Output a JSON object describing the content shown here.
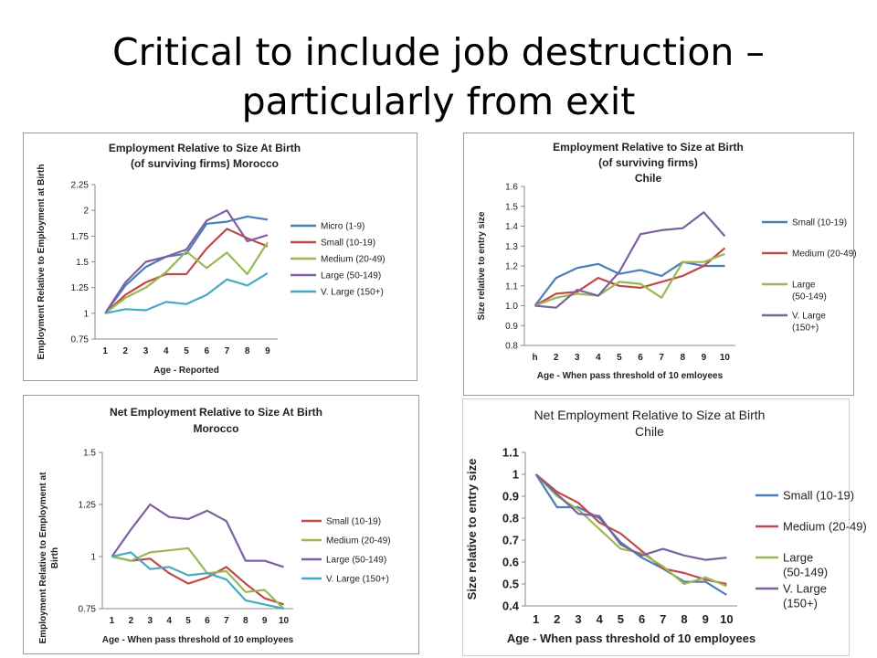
{
  "slide": {
    "title_line1": "Critical to include job destruction –",
    "title_line2": "particularly from exit"
  },
  "chart_data": [
    {
      "type": "line",
      "title": [
        "Employment Relative to Size At Birth",
        "(of surviving firms) Morocco"
      ],
      "xlabel": "Age - Reported",
      "ylabel": "Employment Relative to Employment at Birth",
      "x": [
        "1",
        "2",
        "3",
        "4",
        "5",
        "6",
        "7",
        "8",
        "9"
      ],
      "ylim": [
        0.75,
        2.25
      ],
      "yticks": [
        "0.75",
        "1",
        "1.25",
        "1.5",
        "1.75",
        "2",
        "2.25"
      ],
      "legend_position": "right",
      "series": [
        {
          "name": "Micro (1-9)",
          "color": "#4a7ebb",
          "values": [
            1,
            1.27,
            1.45,
            1.55,
            1.58,
            1.87,
            1.89,
            1.94,
            1.91
          ]
        },
        {
          "name": "Small (10-19)",
          "color": "#be4b48",
          "values": [
            1,
            1.18,
            1.3,
            1.38,
            1.38,
            1.63,
            1.82,
            1.73,
            1.65
          ]
        },
        {
          "name": "Medium (20-49)",
          "color": "#98b954",
          "values": [
            1,
            1.15,
            1.25,
            1.4,
            1.6,
            1.44,
            1.59,
            1.38,
            1.69
          ]
        },
        {
          "name": "Large (50-149)",
          "color": "#7d60a0",
          "values": [
            1,
            1.3,
            1.5,
            1.55,
            1.62,
            1.9,
            2.0,
            1.7,
            1.76
          ]
        },
        {
          "name": "V. Large (150+)",
          "color": "#46aac4",
          "values": [
            1,
            1.04,
            1.03,
            1.11,
            1.09,
            1.18,
            1.33,
            1.27,
            1.39
          ]
        }
      ]
    },
    {
      "type": "line",
      "title": [
        "Employment Relative to Size at Birth",
        "(of surviving firms)",
        "Chile"
      ],
      "xlabel": "Age - When pass threshold of 10 emloyees",
      "ylabel": "Size relative to entry size",
      "x": [
        "h",
        "2",
        "3",
        "4",
        "5",
        "6",
        "7",
        "8",
        "9",
        "10"
      ],
      "ylim": [
        0.8,
        1.6
      ],
      "yticks": [
        "0.8",
        "0.9",
        "1.0",
        "1.1",
        "1.2",
        "1.3",
        "1.4",
        "1.5",
        "1.6"
      ],
      "legend_position": "right",
      "series": [
        {
          "name": "Small (10-19)",
          "color": "#4a7ebb",
          "values": [
            1.0,
            1.14,
            1.19,
            1.21,
            1.16,
            1.18,
            1.15,
            1.22,
            1.2,
            1.2
          ]
        },
        {
          "name": "Medium (20-49)",
          "color": "#be4b48",
          "values": [
            1.0,
            1.06,
            1.07,
            1.14,
            1.1,
            1.09,
            1.12,
            1.15,
            1.2,
            1.29
          ]
        },
        {
          "name": "Large (50-149)",
          "color": "#98b954",
          "values": [
            1.0,
            1.04,
            1.06,
            1.05,
            1.12,
            1.11,
            1.04,
            1.22,
            1.22,
            1.26
          ]
        },
        {
          "name": "V. Large (150+)",
          "color": "#7d60a0",
          "values": [
            1.0,
            0.99,
            1.08,
            1.05,
            1.17,
            1.36,
            1.38,
            1.39,
            1.47,
            1.35
          ]
        }
      ]
    },
    {
      "type": "line",
      "title": [
        "Net Employment Relative to Size At Birth",
        "Morocco"
      ],
      "xlabel": "Age - When pass threshold of 10 employees",
      "ylabel": "Employment Relative to Employment at Birth",
      "x": [
        "1",
        "2",
        "3",
        "4",
        "5",
        "6",
        "7",
        "8",
        "9",
        "10"
      ],
      "ylim": [
        0.75,
        1.5
      ],
      "yticks": [
        "0.75",
        "1",
        "1.25",
        "1.5"
      ],
      "legend_position": "right",
      "series": [
        {
          "name": "Small (10-19)",
          "color": "#be4b48",
          "values": [
            1.0,
            0.98,
            0.99,
            0.92,
            0.87,
            0.9,
            0.95,
            0.87,
            0.8,
            0.77
          ]
        },
        {
          "name": "Medium (20-49)",
          "color": "#98b954",
          "values": [
            1.0,
            0.98,
            1.02,
            1.03,
            1.04,
            0.92,
            0.93,
            0.83,
            0.84,
            0.75
          ]
        },
        {
          "name": "Large (50-149)",
          "color": "#7d60a0",
          "values": [
            1.0,
            1.13,
            1.25,
            1.19,
            1.18,
            1.22,
            1.17,
            0.98,
            0.98,
            0.95
          ]
        },
        {
          "name": "V. Large (150+)",
          "color": "#46aac4",
          "values": [
            1.0,
            1.02,
            0.94,
            0.95,
            0.91,
            0.92,
            0.89,
            0.79,
            0.77,
            0.75
          ]
        }
      ]
    },
    {
      "type": "line",
      "title": [
        "Net Employment  Relative to Size at Birth",
        "Chile"
      ],
      "xlabel": "Age - When pass threshold of 10 employees",
      "ylabel": "Size relative to entry size",
      "x": [
        "1",
        "2",
        "3",
        "4",
        "5",
        "6",
        "7",
        "8",
        "9",
        "10"
      ],
      "ylim": [
        0.4,
        1.1
      ],
      "yticks": [
        "0.4",
        "0.5",
        "0.6",
        "0.7",
        "0.8",
        "0.9",
        "1",
        "1.1"
      ],
      "legend_position": "right",
      "series": [
        {
          "name": "Small (10-19)",
          "color": "#4a7ebb",
          "values": [
            1.0,
            0.85,
            0.85,
            0.8,
            0.69,
            0.62,
            0.57,
            0.51,
            0.51,
            0.45
          ]
        },
        {
          "name": "Medium (20-49)",
          "color": "#be4b48",
          "values": [
            1.0,
            0.92,
            0.87,
            0.78,
            0.73,
            0.65,
            0.57,
            0.55,
            0.52,
            0.5
          ]
        },
        {
          "name": "Large (50-149)",
          "color": "#98b954",
          "values": [
            1.0,
            0.9,
            0.84,
            0.75,
            0.66,
            0.64,
            0.58,
            0.5,
            0.53,
            0.49
          ]
        },
        {
          "name": "V. Large (150+)",
          "color": "#7d60a0",
          "values": [
            1.0,
            0.91,
            0.82,
            0.81,
            0.68,
            0.63,
            0.66,
            0.63,
            0.61,
            0.62
          ]
        }
      ]
    }
  ]
}
